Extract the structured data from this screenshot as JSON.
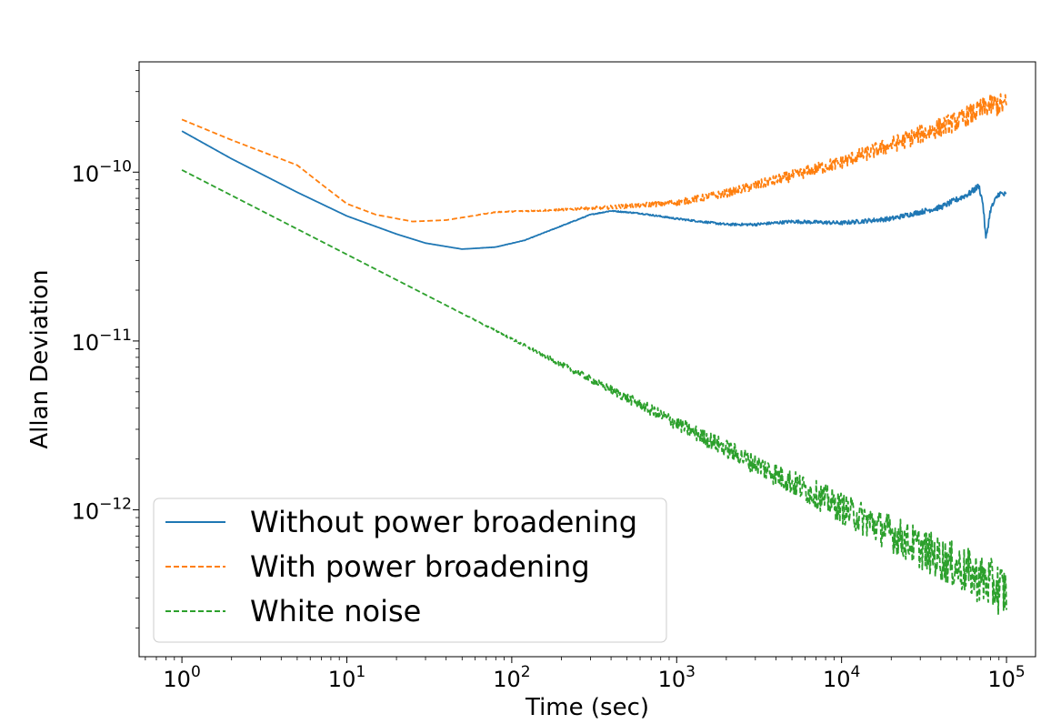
{
  "chart_data": {
    "type": "line",
    "title": "",
    "xlabel": "Time (sec)",
    "ylabel": "Allan Deviation",
    "xscale": "log",
    "yscale": "log",
    "xlim": [
      0.55,
      150000
    ],
    "ylim": [
      1.35e-13,
      4.5e-10
    ],
    "grid": false,
    "legend_location": "lower-left",
    "x_ticks": [
      {
        "value": 1,
        "base": "10",
        "exp": "0"
      },
      {
        "value": 10,
        "base": "10",
        "exp": "1"
      },
      {
        "value": 100,
        "base": "10",
        "exp": "2"
      },
      {
        "value": 1000,
        "base": "10",
        "exp": "3"
      },
      {
        "value": 10000,
        "base": "10",
        "exp": "4"
      },
      {
        "value": 100000,
        "base": "10",
        "exp": "5"
      }
    ],
    "y_ticks": [
      {
        "value": 1e-12,
        "base": "10",
        "exp": "−12"
      },
      {
        "value": 1e-11,
        "base": "10",
        "exp": "−11"
      },
      {
        "value": 1e-10,
        "base": "10",
        "exp": "−10"
      }
    ],
    "series": [
      {
        "name": "Without power broadening",
        "color": "#1f77b4",
        "dash": "solid",
        "noise": 0.02,
        "points": [
          [
            1,
            1.75e-10
          ],
          [
            2,
            1.2e-10
          ],
          [
            5,
            7.6e-11
          ],
          [
            10,
            5.5e-11
          ],
          [
            20,
            4.3e-11
          ],
          [
            30,
            3.8e-11
          ],
          [
            50,
            3.5e-11
          ],
          [
            80,
            3.6e-11
          ],
          [
            120,
            3.95e-11
          ],
          [
            200,
            4.8e-11
          ],
          [
            300,
            5.6e-11
          ],
          [
            400,
            5.9e-11
          ],
          [
            600,
            5.7e-11
          ],
          [
            1000,
            5.3e-11
          ],
          [
            2000,
            4.9e-11
          ],
          [
            3000,
            4.9e-11
          ],
          [
            5000,
            5.1e-11
          ],
          [
            10000,
            5e-11
          ],
          [
            20000,
            5.3e-11
          ],
          [
            40000,
            6.2e-11
          ],
          [
            60000,
            7.5e-11
          ],
          [
            68000,
            8.3e-11
          ],
          [
            72000,
            6.5e-11
          ],
          [
            75000,
            4e-11
          ],
          [
            80000,
            6e-11
          ],
          [
            90000,
            7.5e-11
          ],
          [
            100000,
            7.3e-11
          ]
        ]
      },
      {
        "name": "With power broadening",
        "color": "#ff7f0e",
        "dash": "dashed",
        "noise": 0.07,
        "points": [
          [
            1,
            2.05e-10
          ],
          [
            2,
            1.55e-10
          ],
          [
            5,
            1.1e-10
          ],
          [
            7,
            8.5e-11
          ],
          [
            10,
            6.5e-11
          ],
          [
            15,
            5.6e-11
          ],
          [
            25,
            5.1e-11
          ],
          [
            40,
            5.2e-11
          ],
          [
            80,
            5.8e-11
          ],
          [
            200,
            6e-11
          ],
          [
            400,
            6.2e-11
          ],
          [
            1000,
            6.6e-11
          ],
          [
            2000,
            7.5e-11
          ],
          [
            5000,
            9.5e-11
          ],
          [
            10000,
            1.15e-10
          ],
          [
            20000,
            1.45e-10
          ],
          [
            50000,
            2e-10
          ],
          [
            80000,
            2.5e-10
          ],
          [
            100000,
            2.5e-10
          ]
        ]
      },
      {
        "name": "White noise",
        "color": "#2ca02c",
        "dash": "dashed",
        "noise": 0.16,
        "points": [
          [
            1,
            1.03e-10
          ],
          [
            100000,
            3.25e-13
          ]
        ]
      }
    ]
  }
}
